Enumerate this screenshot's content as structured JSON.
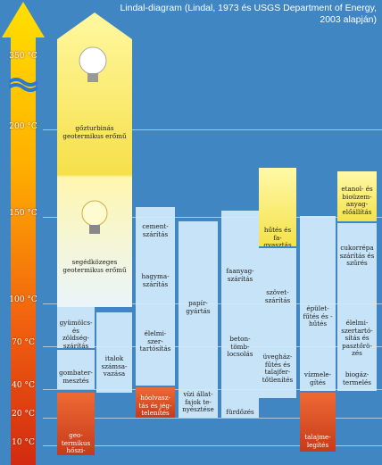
{
  "title": "Lindal-diagram (Lindal, 1973 és USGS Department of Energy, 2003 alapján)",
  "scale": {
    "ticks": [
      "350 °C",
      "200 °C",
      "150 °C",
      "100 °C",
      "70 °C",
      "40 °C",
      "20 °C",
      "10 °C"
    ]
  },
  "applications": {
    "steam_turbine": "gőzturbinás geotermikus erőmű",
    "binary_plant": "segédközeges geotermikus erőmű",
    "fruit_drying": "gyümölcs- és zöldség-szárítás",
    "mushroom": "gombater-mesztés",
    "heat_pump": "geo-termikus hőszi-vattyúk",
    "drinks": "italok számsa-vazása",
    "cement": "cement-szárítás",
    "fish_drying": "hagyma-szárítás",
    "food_preserve": "élelmi-szer-tartósítás",
    "de_icing": "hóolvasz-tás és jég-telenítés",
    "paper": "papír-gyártás",
    "aquaculture": "vízi állat-fajok te-nyésztése",
    "timber": "faanyag-szárítás",
    "concrete": "beton-tömb-locsolás",
    "bathing": "fürdőzés",
    "cooling": "hűtés és fa-gyasztás",
    "wool": "szövet-szárítás",
    "greenhouse": "üvegház-fűtés és talajfer-tőtlenítés",
    "building_heating": "épület-fűtés és -hűtés",
    "water_heating": "vízmele-gítés",
    "soil_warming": "talajme-legítés",
    "ethanol": "etanol- és bioüzem-anyag-előállítás",
    "sugar": "cukorrépa szárítás és szűrés",
    "pasteurize": "élelmi-szertartó-sítás és pasztőrö-zés",
    "biogas": "biogáz-termelés"
  },
  "colors": {
    "background": "#3f86c2",
    "arrow_top": "#ffd400",
    "arrow_bottom": "#d22a10"
  }
}
